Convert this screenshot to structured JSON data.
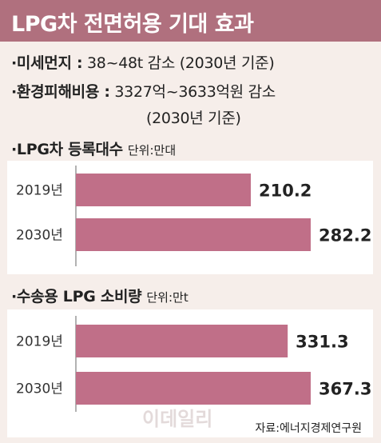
{
  "title": "LPG차 전면허용 기대 효과",
  "info": [
    {
      "key": "·미세먼지 :",
      "value": "38~48t 감소 (2030년 기준)"
    },
    {
      "key": "·환경피해비용 :",
      "value": "3327억~3633억원 감소",
      "value2": "(2030년 기준)"
    }
  ],
  "colors": {
    "title_bg": "#b0707e",
    "bar": "#c06f88",
    "page_bg": "#f6eeea"
  },
  "chart_data": [
    {
      "type": "bar",
      "orientation": "horizontal",
      "title": "·LPG차 등록대수",
      "unit_label": "단위:만대",
      "categories": [
        "2019년",
        "2030년"
      ],
      "values": [
        210.2,
        282.2
      ],
      "value_labels": [
        "210.2",
        "282.2"
      ],
      "xlim": [
        0,
        282.2
      ]
    },
    {
      "type": "bar",
      "orientation": "horizontal",
      "title": "·수송용 LPG 소비량",
      "unit_label": "단위:만t",
      "categories": [
        "2019년",
        "2030년"
      ],
      "values": [
        331.3,
        367.3
      ],
      "value_labels": [
        "331.3",
        "367.3"
      ],
      "xlim": [
        0,
        367.3
      ]
    }
  ],
  "source": "자료:에너지경제연구원",
  "watermark": "이데일리"
}
